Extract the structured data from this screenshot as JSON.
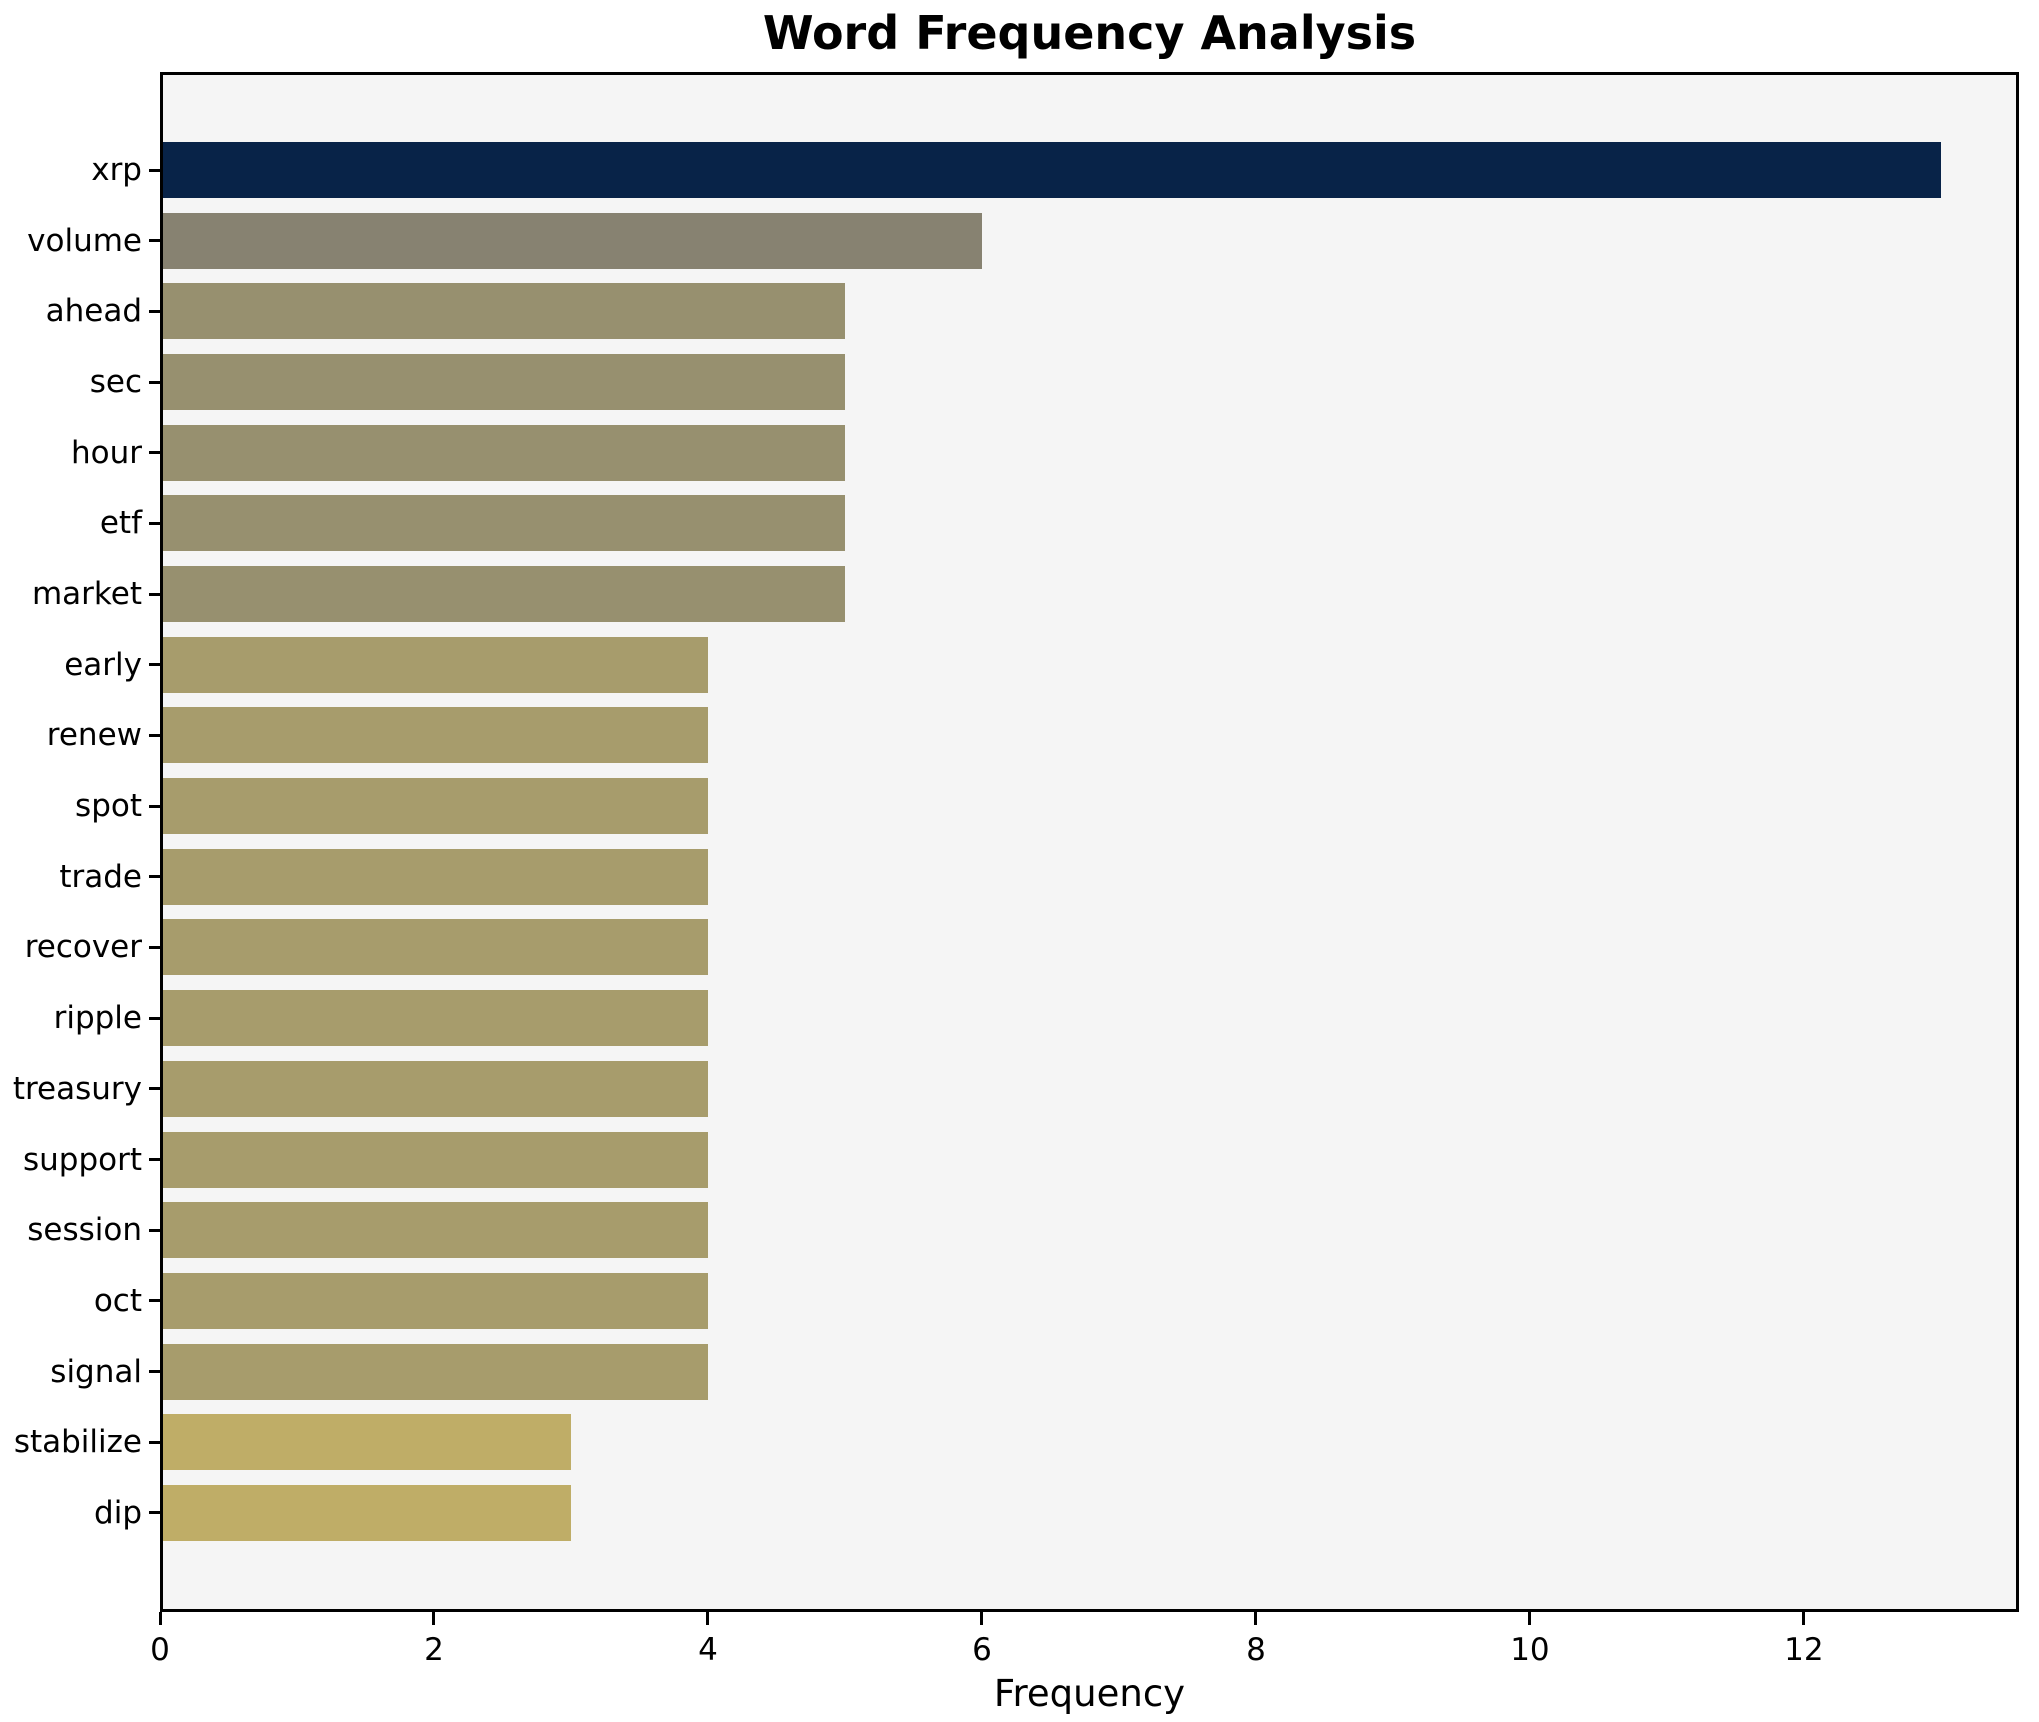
{
  "chart_data": {
    "type": "bar",
    "orientation": "horizontal",
    "title": "Word Frequency Analysis",
    "xlabel": "Frequency",
    "ylabel": "",
    "categories": [
      "xrp",
      "volume",
      "ahead",
      "sec",
      "hour",
      "etf",
      "market",
      "early",
      "renew",
      "spot",
      "trade",
      "recover",
      "ripple",
      "treasury",
      "support",
      "session",
      "oct",
      "signal",
      "stabilize",
      "dip"
    ],
    "values": [
      13,
      6,
      5,
      5,
      5,
      5,
      5,
      4,
      4,
      4,
      4,
      4,
      4,
      4,
      4,
      4,
      4,
      4,
      3,
      3
    ],
    "bar_colors": [
      "#082348",
      "#878271",
      "#97906F",
      "#97906F",
      "#97906F",
      "#97906F",
      "#97906F",
      "#A79C6C",
      "#A79C6C",
      "#A79C6C",
      "#A79C6C",
      "#A79C6C",
      "#A79C6C",
      "#A79C6C",
      "#A79C6C",
      "#A79C6C",
      "#A79C6C",
      "#A79C6C",
      "#BFAD67",
      "#BFAD67"
    ],
    "xlim": [
      0,
      13.57
    ],
    "xticks": [
      0,
      2,
      4,
      6,
      8,
      10,
      12
    ],
    "grid": false,
    "legend": null,
    "plot_background": "#f5f5f5",
    "figure_background": "#ffffff",
    "axis_color": "#000000"
  }
}
